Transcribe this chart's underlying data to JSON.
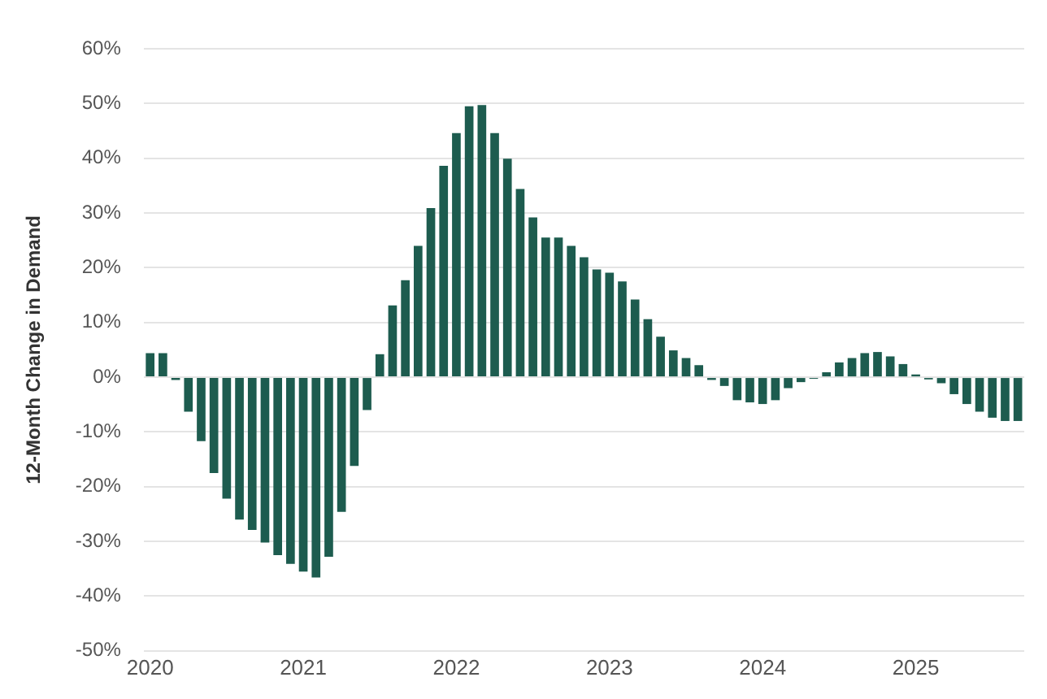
{
  "chart_data": {
    "type": "bar",
    "ylabel": "12-Month Change in Demand",
    "categories": [
      "2020",
      null,
      null,
      null,
      null,
      null,
      null,
      null,
      null,
      null,
      null,
      null,
      "2021",
      null,
      null,
      null,
      null,
      null,
      null,
      null,
      null,
      null,
      null,
      null,
      "2022",
      null,
      null,
      null,
      null,
      null,
      null,
      null,
      null,
      null,
      null,
      null,
      "2023",
      null,
      null,
      null,
      null,
      null,
      null,
      null,
      null,
      null,
      null,
      null,
      "2024",
      null,
      null,
      null,
      null,
      null,
      null,
      null,
      null,
      null,
      null,
      null,
      "2025",
      null,
      null,
      null,
      null,
      null,
      null,
      null,
      null
    ],
    "series": [
      {
        "color": "#1d5c4f",
        "values": [
          4.4,
          4.4,
          -0.5,
          -6.3,
          -11.7,
          -17.5,
          -22.2,
          -26,
          -27.9,
          -30.2,
          -32.5,
          -34.1,
          -35.5,
          -36.6,
          -32.8,
          -24.6,
          -16.2,
          -6,
          4.2,
          13.1,
          17.7,
          24,
          30.9,
          38.6,
          44.6,
          49.5,
          49.7,
          44.6,
          39.9,
          34.4,
          29.2,
          25.5,
          25.5,
          24,
          21.9,
          19.7,
          19.1,
          17.5,
          14.2,
          10.6,
          7.4,
          4.9,
          3.5,
          2.2,
          -0.5,
          -1.6,
          -4.2,
          -4.6,
          -4.9,
          -4.2,
          -2,
          -0.9,
          -0.3,
          0.9,
          2.7,
          3.5,
          4.4,
          4.6,
          3.8,
          2.4,
          0.5,
          -0.4,
          -1.1,
          -3.1,
          -4.9,
          -6.3,
          -7.4,
          -8,
          -8
        ]
      }
    ],
    "ylim": [
      -50,
      60
    ],
    "yticks": [
      {
        "value": -50,
        "label": "-50%"
      },
      {
        "value": -40,
        "label": "-40%"
      },
      {
        "value": -30,
        "label": "-30%"
      },
      {
        "value": -20,
        "label": "-20%"
      },
      {
        "value": -10,
        "label": "-10%"
      },
      {
        "value": 0,
        "label": "0%"
      },
      {
        "value": 10,
        "label": "10%"
      },
      {
        "value": 20,
        "label": "20%"
      },
      {
        "value": 30,
        "label": "30%"
      },
      {
        "value": 40,
        "label": "40%"
      },
      {
        "value": 50,
        "label": "50%"
      },
      {
        "value": 60,
        "label": "60%"
      }
    ],
    "grid": "y"
  }
}
